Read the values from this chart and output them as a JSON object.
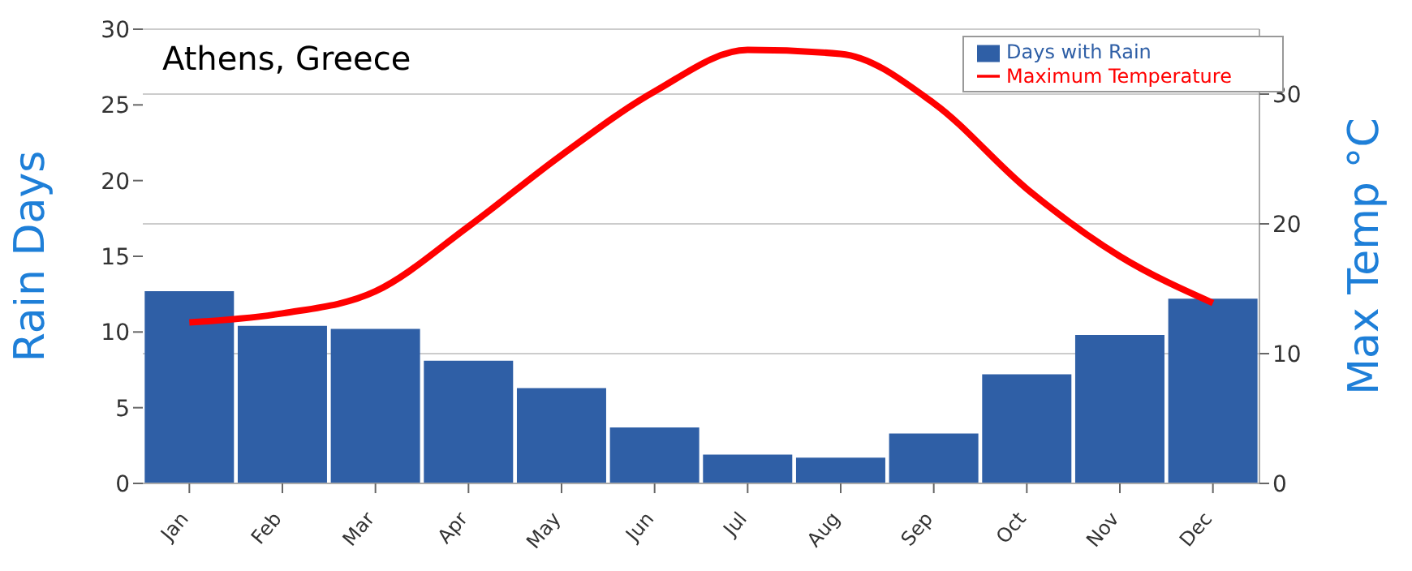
{
  "chart_data": {
    "type": "bar",
    "title": "Athens, Greece",
    "ylabel": "Rain Days",
    "y2label": "Max Temp °C",
    "categories": [
      "Jan",
      "Feb",
      "Mar",
      "Apr",
      "May",
      "Jun",
      "Jul",
      "Aug",
      "Sep",
      "Oct",
      "Nov",
      "Dec"
    ],
    "series": [
      {
        "name": "Days with Rain",
        "color": "#2f5fa6",
        "values": [
          12.7,
          10.4,
          10.2,
          8.1,
          6.3,
          3.7,
          1.9,
          1.7,
          3.3,
          7.2,
          9.8,
          12.2
        ]
      },
      {
        "name": "Maximum Temperature",
        "type": "line",
        "axis": "y2",
        "color": "#ff0000",
        "values": [
          12.4,
          13.1,
          14.8,
          19.8,
          25.3,
          30.2,
          33.4,
          33.1,
          29.3,
          22.7,
          17.5,
          13.9
        ]
      }
    ],
    "ylim": [
      0,
      30
    ],
    "yticks": [
      0,
      5,
      10,
      15,
      20,
      25,
      30
    ],
    "y2lim": [
      0,
      35
    ],
    "y2ticks": [
      0,
      10,
      20,
      30
    ],
    "grid": "y",
    "legend": "top right",
    "marker": "none",
    "line_style": "solid"
  }
}
